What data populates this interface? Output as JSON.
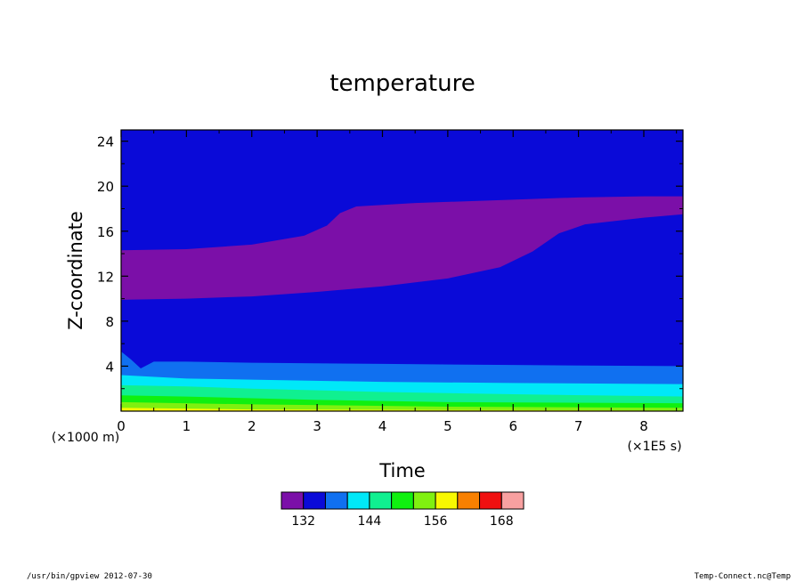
{
  "chart_data": {
    "type": "heatmap",
    "title": "temperature",
    "xlabel": "Time",
    "ylabel": "Z-coordinate",
    "x_unit": "(×1E5 s)",
    "y_unit": "(×1000 m)",
    "xlim": [
      0,
      8.6
    ],
    "ylim": [
      0,
      25
    ],
    "x_ticks": [
      "0",
      "1",
      "2",
      "3",
      "4",
      "5",
      "6",
      "7",
      "8"
    ],
    "y_ticks": [
      "4",
      "8",
      "12",
      "16",
      "20",
      "24"
    ],
    "contour_interval": 4,
    "levels": [
      128,
      132,
      136,
      140,
      144,
      148,
      152,
      156,
      160,
      164,
      168,
      172
    ],
    "colors": [
      "#7b0fa8",
      "#0a0ad8",
      "#1070f0",
      "#00e8f8",
      "#10f090",
      "#10f010",
      "#80f010",
      "#f8f800",
      "#f88000",
      "#f01010",
      "#f8a0a0"
    ],
    "colorbar_labels": [
      "132",
      "144",
      "156",
      "168"
    ],
    "boundaries": [
      {
        "lower": 132,
        "upper": 136,
        "z_vs_time": [
          [
            0,
            14.3
          ],
          [
            1,
            14.4
          ],
          [
            2,
            14.8
          ],
          [
            2.8,
            15.6
          ],
          [
            3.15,
            16.5
          ],
          [
            3.35,
            17.6
          ],
          [
            3.6,
            18.2
          ],
          [
            4.5,
            18.5
          ],
          [
            6,
            18.8
          ],
          [
            7,
            19.0
          ],
          [
            8,
            19.1
          ],
          [
            8.6,
            19.1
          ]
        ]
      },
      {
        "lower": 136,
        "upper": 140,
        "z_vs_time": [
          [
            0,
            9.9
          ],
          [
            1,
            10.0
          ],
          [
            2,
            10.2
          ],
          [
            3,
            10.6
          ],
          [
            4,
            11.1
          ],
          [
            5,
            11.8
          ],
          [
            5.8,
            12.8
          ],
          [
            6.3,
            14.2
          ],
          [
            6.7,
            15.8
          ],
          [
            7.1,
            16.6
          ],
          [
            8,
            17.2
          ],
          [
            8.6,
            17.5
          ]
        ]
      },
      {
        "lower": 140,
        "upper": 144,
        "z_vs_time": [
          [
            0,
            5.3
          ],
          [
            0.15,
            4.6
          ],
          [
            0.3,
            3.8
          ],
          [
            0.5,
            4.4
          ],
          [
            1,
            4.4
          ],
          [
            2,
            4.3
          ],
          [
            4,
            4.2
          ],
          [
            6,
            4.1
          ],
          [
            8.6,
            4.0
          ]
        ]
      },
      {
        "lower": 144,
        "upper": 148,
        "z_vs_time": [
          [
            0,
            3.2
          ],
          [
            1,
            2.9
          ],
          [
            2,
            2.8
          ],
          [
            4,
            2.6
          ],
          [
            6,
            2.5
          ],
          [
            8.6,
            2.4
          ]
        ]
      },
      {
        "lower": 148,
        "upper": 152,
        "z_vs_time": [
          [
            0,
            2.3
          ],
          [
            1,
            2.2
          ],
          [
            2,
            2.0
          ],
          [
            4,
            1.7
          ],
          [
            6,
            1.5
          ],
          [
            8.6,
            1.3
          ]
        ]
      },
      {
        "lower": 152,
        "upper": 156,
        "z_vs_time": [
          [
            0,
            1.4
          ],
          [
            1,
            1.3
          ],
          [
            3,
            1.0
          ],
          [
            5,
            0.8
          ],
          [
            8.6,
            0.7
          ]
        ]
      },
      {
        "lower": 156,
        "upper": 160,
        "z_vs_time": [
          [
            0,
            0.8
          ],
          [
            2,
            0.6
          ],
          [
            5,
            0.4
          ],
          [
            8.6,
            0.3
          ]
        ]
      },
      {
        "lower": 160,
        "upper": 164,
        "z_vs_time": [
          [
            0,
            0.3
          ],
          [
            2,
            0.15
          ],
          [
            8.6,
            0.05
          ]
        ]
      }
    ]
  },
  "footer": {
    "left": "/usr/bin/gpview   2012-07-30",
    "right": "Temp-Connect.nc@Temp"
  }
}
